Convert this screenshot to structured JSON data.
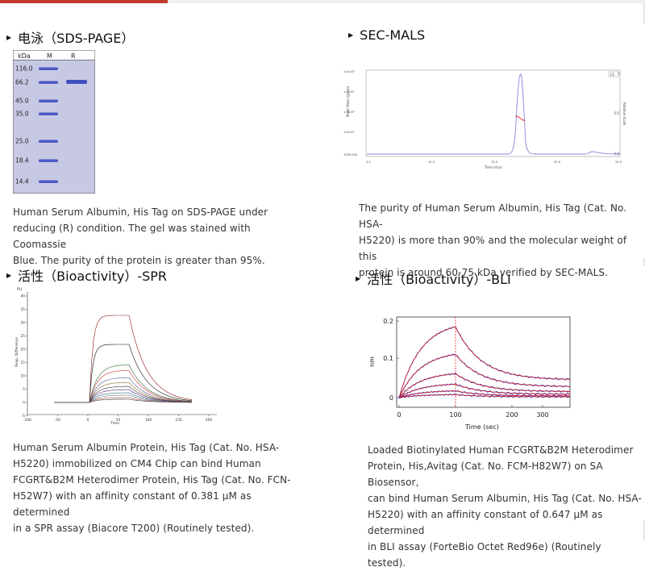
{
  "sections": {
    "sds": {
      "title": "电泳（SDS-PAGE）",
      "gel": {
        "kda": "kDa",
        "lane_m": "M",
        "lane_r": "R",
        "markers": [
          "116.0",
          "66.2",
          "45.0",
          "35.0",
          "25.0",
          "18.4",
          "14.4"
        ]
      },
      "caption": [
        "Human Serum Albumin, His Tag on SDS-PAGE under",
        "reducing (R) condition. The gel was stained with Coomassie",
        "Blue. The purity of the protein is greater than 95%."
      ]
    },
    "secmals": {
      "title": "SEC-MALS",
      "caption": [
        "The purity of Human Serum Albumin, His Tag (Cat. No. HSA-",
        "H5220) is more than 90% and the molecular weight of this",
        "protein is around 60-75 kDa verified by SEC-MALS."
      ],
      "plot": {
        "ylabel": "Molar Mass (g/mol)",
        "y2label": "Relative Scale",
        "xlabel": "Time (min)",
        "yticks": [
          "1.0x10⁶",
          "1.0x10⁵",
          "1.0x10⁴",
          "1.0x10³",
          "1000.000"
        ],
        "xticks": [
          "0.0",
          "10.0",
          "15.0",
          "20.0",
          "25.0"
        ],
        "y2ticks": [
          "1.0",
          "0.5",
          "0.0"
        ],
        "legend": "LS"
      }
    },
    "spr": {
      "title": "活性（Bioactivity）-SPR",
      "plot": {
        "ylabel": "RU",
        "yaxis_title": "Resp. Difference",
        "xlabel": "Time",
        "xticks": [
          "-100",
          "-50",
          "0",
          "50",
          "100",
          "150",
          "200",
          "250"
        ],
        "yticks": [
          "40",
          "35",
          "30",
          "25",
          "20",
          "15",
          "10",
          "5",
          "0",
          "-5"
        ]
      },
      "caption": [
        "Human Serum Albumin Protein, His Tag (Cat. No. HSA-",
        "H5220) immobilized on CM4 Chip can bind Human",
        "FCGRT&B2M Heterodimer Protein, His Tag (Cat. No. FCN-",
        "H52W7) with an affinity constant of 0.381 μM as determined",
        "in a SPR assay (Biacore T200) (Routinely tested)."
      ]
    },
    "bli": {
      "title": "活性（Bioactivity）-BLI",
      "plot": {
        "ylabel": "nm",
        "xlabel": "Time (sec)",
        "yticks": [
          "0.2",
          "0.1",
          "0"
        ],
        "xticks": [
          "0",
          "100",
          "200",
          "300"
        ]
      },
      "caption": [
        "Loaded Biotinylated Human FCGRT&B2M Heterodimer",
        "Protein, His,Avitag (Cat. No. FCM-H82W7) on SA Biosensor,",
        "can bind Human Serum Albumin, His Tag (Cat. No. HSA-",
        "H5220) with an affinity constant of 0.647 μM as determined",
        "in BLI assay (ForteBio Octet Red96e) (Routinely tested)."
      ]
    }
  },
  "colors": {
    "accent": "#c0392b",
    "gel_bg": "#c7c9e4",
    "band": "#3f4fc0",
    "bli_red": "#e02020",
    "bli_blue": "#1a2fd0"
  }
}
